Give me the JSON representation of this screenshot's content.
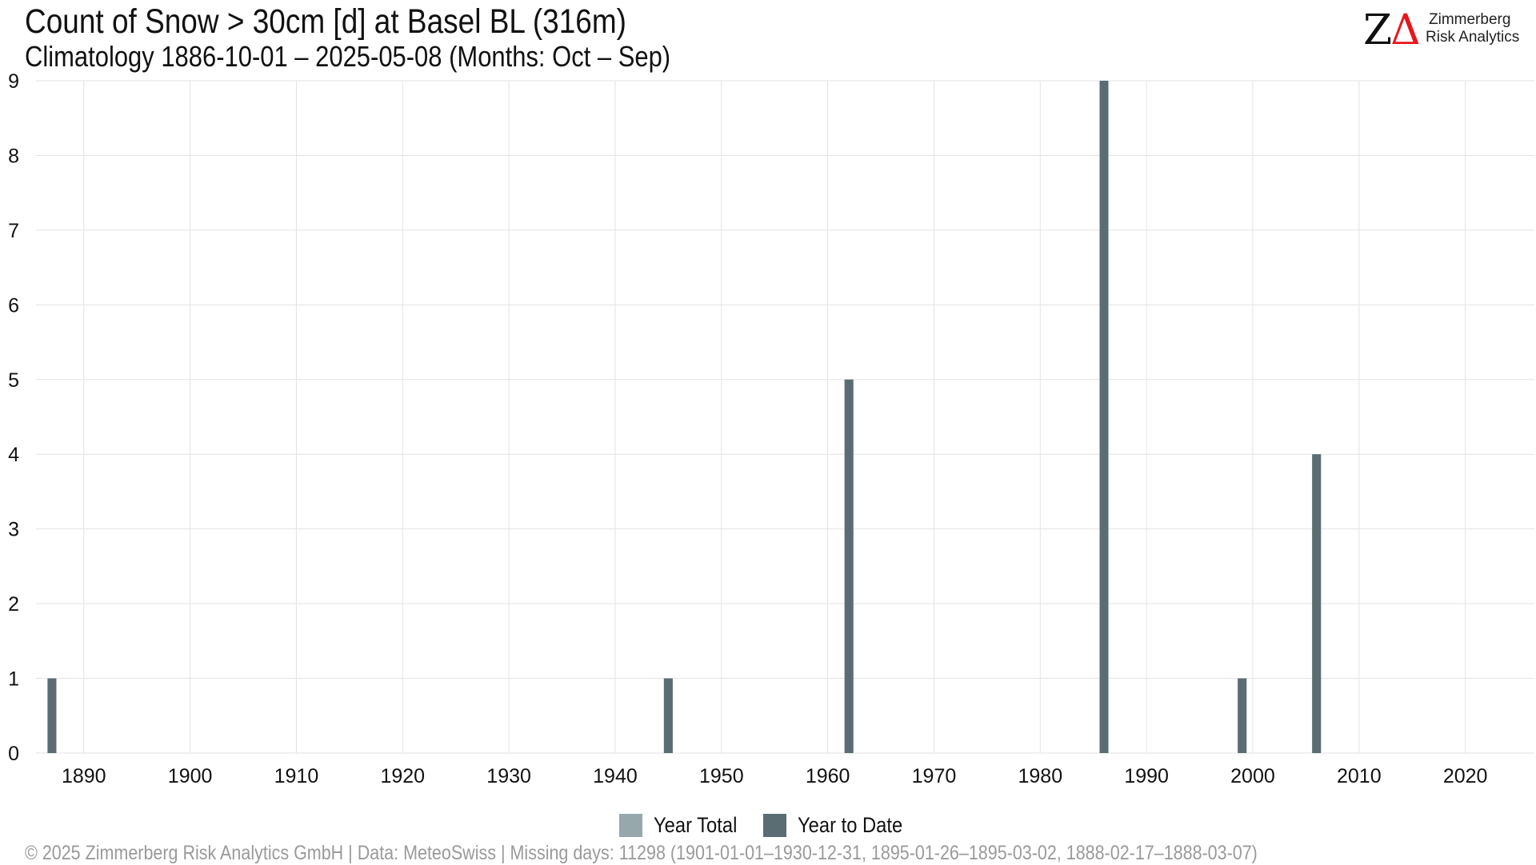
{
  "title": "Count of Snow > 30cm [d] at Basel  BL (316m)",
  "subtitle": "Climatology 1886-10-01 – 2025-05-08 (Months: Oct – Sep)",
  "logo": {
    "mark_z": "Z",
    "mark_delta": "Δ",
    "line1": "Zimmerberg",
    "line2": "Risk Analytics"
  },
  "footer": "©  2025 Zimmerberg Risk Analytics GmbH | Data: MeteoSwiss | Missing days: 11298 (1901-01-01–1930-12-31, 1895-01-26–1895-03-02, 1888-02-17–1888-03-07)",
  "colors": {
    "year_total": "#97a8ad",
    "year_to_date": "#5a6d72",
    "grid": "#e3e3e3"
  },
  "chart_data": {
    "type": "bar",
    "title": "Count of Snow > 30cm [d] at Basel  BL (316m)",
    "subtitle": "Climatology 1886-10-01 – 2025-05-08 (Months: Oct – Sep)",
    "xlabel": "",
    "ylabel": "",
    "xlim": [
      1885.5,
      2026.5
    ],
    "ylim": [
      0,
      9
    ],
    "xticks": [
      1890,
      1900,
      1910,
      1920,
      1930,
      1940,
      1950,
      1960,
      1970,
      1980,
      1990,
      2000,
      2010,
      2020
    ],
    "yticks": [
      0,
      1,
      2,
      3,
      4,
      5,
      6,
      7,
      8,
      9
    ],
    "grid": true,
    "legend_position": "bottom",
    "series": [
      {
        "name": "Year Total",
        "color": "#97a8ad",
        "points": [
          {
            "x": 1887,
            "y": 1
          },
          {
            "x": 1945,
            "y": 1
          },
          {
            "x": 1962,
            "y": 5
          },
          {
            "x": 1986,
            "y": 9
          },
          {
            "x": 1999,
            "y": 1
          },
          {
            "x": 2006,
            "y": 4
          }
        ]
      },
      {
        "name": "Year to Date",
        "color": "#5a6d72",
        "points": [
          {
            "x": 1887,
            "y": 1
          },
          {
            "x": 1945,
            "y": 1
          },
          {
            "x": 1962,
            "y": 5
          },
          {
            "x": 1986,
            "y": 9
          },
          {
            "x": 1999,
            "y": 1
          },
          {
            "x": 2006,
            "y": 4
          }
        ]
      }
    ]
  }
}
